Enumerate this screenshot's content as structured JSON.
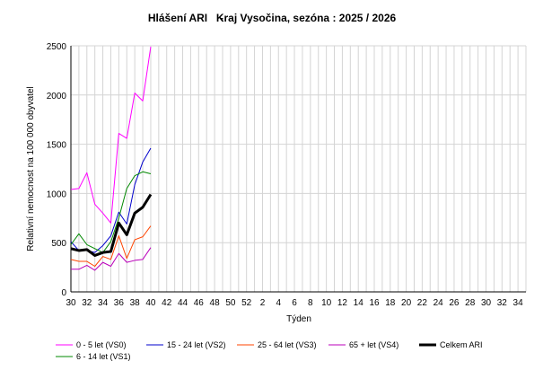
{
  "chart_data": {
    "type": "line",
    "title": "Hlášení ARI   -   Kraj Vysočina, sezóna : 2025 / 2026",
    "title_left": "Hlášení ARI",
    "title_sep": "-",
    "title_right": "Kraj Vysočina, sezóna : 2025 / 2026",
    "xlabel": "Týden",
    "ylabel": "Relativní nemocnost na 100 000 obyvatel",
    "ylim": [
      0,
      2500
    ],
    "yticks": [
      0,
      500,
      1000,
      1500,
      2000,
      2500
    ],
    "x_categories": [
      "30",
      "31",
      "32",
      "33",
      "34",
      "35",
      "36",
      "37",
      "38",
      "39",
      "40",
      "41",
      "42",
      "43",
      "44",
      "45",
      "46",
      "47",
      "48",
      "49",
      "50",
      "51",
      "52",
      "1",
      "2",
      "3",
      "4",
      "5",
      "6",
      "7",
      "8",
      "9",
      "10",
      "11",
      "12",
      "13",
      "14",
      "15",
      "16",
      "17",
      "18",
      "19",
      "20",
      "21",
      "22",
      "23",
      "24",
      "25",
      "26",
      "27",
      "28",
      "29",
      "30",
      "31",
      "32",
      "33",
      "34",
      "35"
    ],
    "x_tick_labels": [
      "30",
      "32",
      "34",
      "36",
      "38",
      "40",
      "42",
      "44",
      "46",
      "48",
      "50",
      "52",
      "2",
      "4",
      "6",
      "8",
      "10",
      "12",
      "14",
      "16",
      "18",
      "20",
      "22",
      "24",
      "26",
      "28",
      "30",
      "32",
      "34"
    ],
    "grid": true,
    "series": [
      {
        "name": "0 - 5 let (VS0)",
        "color": "#ff00ff",
        "width": 1,
        "values": [
          1040,
          1050,
          1210,
          890,
          800,
          700,
          1610,
          1560,
          2020,
          1940,
          2490
        ]
      },
      {
        "name": "15 - 24 let (VS2)",
        "color": "#0000cc",
        "width": 1,
        "values": [
          510,
          420,
          420,
          400,
          470,
          570,
          810,
          690,
          1090,
          1320,
          1460
        ]
      },
      {
        "name": "25 - 64 let (VS3)",
        "color": "#ff4400",
        "width": 1,
        "values": [
          330,
          310,
          310,
          260,
          360,
          330,
          570,
          340,
          530,
          560,
          670
        ]
      },
      {
        "name": "65 + let (VS4)",
        "color": "#bb00bb",
        "width": 1,
        "values": [
          230,
          230,
          270,
          220,
          300,
          260,
          390,
          300,
          320,
          330,
          450
        ]
      },
      {
        "name": "Celkem ARI",
        "color": "#000000",
        "width": 3,
        "values": [
          440,
          420,
          430,
          370,
          400,
          410,
          700,
          580,
          800,
          860,
          990
        ]
      },
      {
        "name": "6 - 14 let (VS1)",
        "color": "#008800",
        "width": 1,
        "values": [
          480,
          590,
          480,
          440,
          400,
          510,
          750,
          1050,
          1180,
          1220,
          1200
        ]
      }
    ],
    "legend_position": "bottom"
  }
}
